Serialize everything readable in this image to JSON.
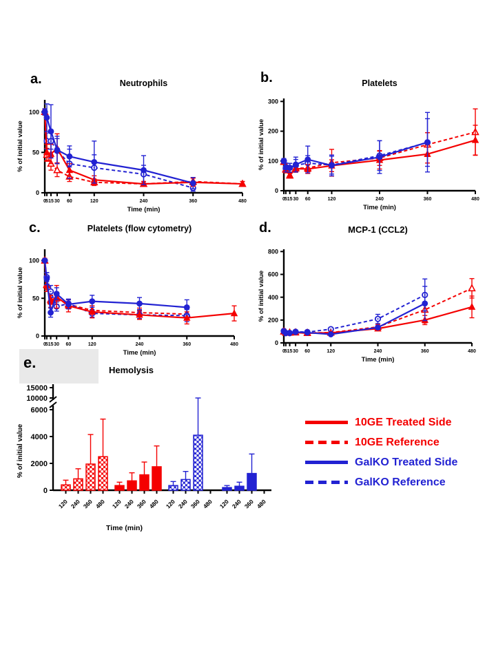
{
  "figure": {
    "background": "#ffffff",
    "colors": {
      "red": "#f40000",
      "blue": "#2222d2",
      "grey_box": "#e9e9e9",
      "axis": "#000000"
    },
    "legend": {
      "items": [
        {
          "label": "10GE Treated Side",
          "color": "red",
          "dash": false
        },
        {
          "label": "10GE Reference",
          "color": "red",
          "dash": true
        },
        {
          "label": "GalKO Treated Side",
          "color": "blue",
          "dash": false
        },
        {
          "label": "GalKO Reference",
          "color": "blue",
          "dash": true
        }
      ]
    }
  },
  "panels": {
    "a": {
      "label": "a."
    },
    "b": {
      "label": "b."
    },
    "c": {
      "label": "c."
    },
    "d": {
      "label": "d."
    },
    "e": {
      "label": "e."
    }
  },
  "chart_data": [
    {
      "id": "a",
      "type": "line",
      "title": "Neutrophils",
      "xlabel": "Time (min)",
      "ylabel": "% of initial value",
      "x": [
        0,
        5,
        15,
        30,
        60,
        120,
        240,
        360,
        480
      ],
      "xticklabels": [
        "0",
        "5",
        "15",
        "30",
        "60",
        "120",
        "240",
        "360",
        "480"
      ],
      "xlim": [
        0,
        480
      ],
      "ylim": [
        0,
        115
      ],
      "yticks": [
        0,
        50,
        100
      ],
      "grid": false,
      "series": [
        {
          "name": "10GE Treated Side",
          "color": "red",
          "dash": false,
          "marker": "triangle_filled",
          "values": [
            100,
            50,
            48,
            55,
            28,
            16,
            11,
            13,
            11
          ],
          "errors": [
            3,
            10,
            12,
            18,
            8,
            5,
            3,
            5,
            3
          ]
        },
        {
          "name": "10GE Reference",
          "color": "red",
          "dash": true,
          "marker": "triangle_open",
          "values": [
            100,
            47,
            36,
            28,
            20,
            13,
            11,
            14,
            11
          ],
          "errors": [
            0,
            8,
            8,
            8,
            6,
            4,
            3,
            5,
            3
          ]
        },
        {
          "name": "GalKO Treated Side",
          "color": "blue",
          "dash": false,
          "marker": "circle_filled",
          "values": [
            100,
            93,
            76,
            53,
            45,
            38,
            28,
            12,
            null
          ],
          "errors": [
            4,
            17,
            33,
            17,
            13,
            26,
            18,
            7,
            0
          ]
        },
        {
          "name": "GalKO Reference",
          "color": "blue",
          "dash": true,
          "marker": "circle_open",
          "values": [
            100,
            64,
            64,
            52,
            36,
            31,
            23,
            6,
            null
          ],
          "errors": [
            0,
            10,
            10,
            15,
            18,
            16,
            11,
            4,
            0
          ]
        }
      ]
    },
    {
      "id": "b",
      "type": "line",
      "title": "Platelets",
      "xlabel": "Time (min)",
      "ylabel": "% of initial value",
      "x": [
        0,
        5,
        15,
        30,
        60,
        120,
        240,
        360,
        480
      ],
      "xticklabels": [
        "0",
        "5",
        "15",
        "30",
        "60",
        "120",
        "240",
        "360",
        "480"
      ],
      "xlim": [
        0,
        480
      ],
      "ylim": [
        0,
        310
      ],
      "yticks": [
        0,
        100,
        200,
        300
      ],
      "grid": false,
      "series": [
        {
          "name": "10GE Treated Side",
          "color": "red",
          "dash": false,
          "marker": "triangle_filled",
          "values": [
            97,
            70,
            53,
            74,
            73,
            84,
            103,
            123,
            170
          ],
          "errors": [
            5,
            10,
            10,
            12,
            15,
            20,
            30,
            30,
            50
          ]
        },
        {
          "name": "10GE Reference",
          "color": "red",
          "dash": true,
          "marker": "triangle_open",
          "values": [
            97,
            72,
            51,
            76,
            76,
            94,
            110,
            155,
            197
          ],
          "errors": [
            5,
            10,
            8,
            12,
            12,
            45,
            25,
            40,
            78
          ]
        },
        {
          "name": "GalKO Treated Side",
          "color": "blue",
          "dash": false,
          "marker": "circle_filled",
          "values": [
            100,
            78,
            77,
            88,
            105,
            85,
            113,
            163,
            null
          ],
          "errors": [
            8,
            15,
            15,
            25,
            45,
            35,
            55,
            100,
            0
          ]
        },
        {
          "name": "GalKO Reference",
          "color": "blue",
          "dash": true,
          "marker": "circle_open",
          "values": [
            100,
            75,
            77,
            85,
            93,
            86,
            118,
            162,
            null
          ],
          "errors": [
            8,
            12,
            15,
            20,
            25,
            30,
            50,
            80,
            0
          ]
        }
      ]
    },
    {
      "id": "c",
      "type": "line",
      "title": "Platelets (flow cytometry)",
      "xlabel": "Time (min)",
      "ylabel": "% of initial value",
      "x": [
        0,
        5,
        15,
        30,
        60,
        120,
        240,
        360,
        480
      ],
      "xticklabels": [
        "0",
        "5",
        "15",
        "30",
        "60",
        "120",
        "240",
        "360",
        "480"
      ],
      "xlim": [
        0,
        480
      ],
      "ylim": [
        0,
        115
      ],
      "yticks": [
        0,
        50,
        100
      ],
      "grid": false,
      "series": [
        {
          "name": "10GE Treated Side",
          "color": "red",
          "dash": false,
          "marker": "triangle_filled",
          "values": [
            100,
            67,
            46,
            52,
            40,
            32,
            28,
            24,
            30
          ],
          "errors": [
            3,
            8,
            8,
            15,
            8,
            8,
            6,
            8,
            10
          ]
        },
        {
          "name": "10GE Reference",
          "color": "red",
          "dash": true,
          "marker": "triangle_open",
          "values": [
            100,
            68,
            48,
            50,
            42,
            34,
            31,
            29,
            null
          ],
          "errors": [
            0,
            6,
            6,
            8,
            6,
            6,
            6,
            8,
            0
          ]
        },
        {
          "name": "GalKO Treated Side",
          "color": "blue",
          "dash": false,
          "marker": "circle_filled",
          "values": [
            100,
            76,
            31,
            56,
            42,
            46,
            43,
            38,
            null
          ],
          "errors": [
            0,
            8,
            6,
            8,
            6,
            8,
            8,
            10,
            0
          ]
        },
        {
          "name": "GalKO Reference",
          "color": "blue",
          "dash": true,
          "marker": "circle_open",
          "values": [
            100,
            78,
            59,
            39,
            43,
            30,
            28,
            27,
            null
          ],
          "errors": [
            0,
            6,
            8,
            6,
            6,
            5,
            5,
            8,
            0
          ]
        }
      ]
    },
    {
      "id": "d",
      "type": "line",
      "title": "MCP-1 (CCL2)",
      "xlabel": "Time (min)",
      "ylabel": "% of initial value",
      "x": [
        0,
        5,
        15,
        30,
        60,
        120,
        240,
        360,
        480
      ],
      "xticklabels": [
        "0",
        "5",
        "15",
        "30",
        "60",
        "120",
        "240",
        "360",
        "480"
      ],
      "xlim": [
        0,
        480
      ],
      "ylim": [
        0,
        820
      ],
      "yticks": [
        0,
        200,
        400,
        600,
        800
      ],
      "grid": false,
      "series": [
        {
          "name": "10GE Treated Side",
          "color": "red",
          "dash": false,
          "marker": "triangle_filled",
          "values": [
            100,
            90,
            88,
            90,
            85,
            88,
            125,
            200,
            315
          ],
          "errors": [
            8,
            8,
            8,
            8,
            8,
            8,
            15,
            40,
            95
          ]
        },
        {
          "name": "10GE Reference",
          "color": "red",
          "dash": true,
          "marker": "triangle_open",
          "values": [
            100,
            90,
            90,
            92,
            88,
            90,
            140,
            290,
            478
          ],
          "errors": [
            8,
            8,
            8,
            8,
            8,
            8,
            20,
            115,
            85
          ]
        },
        {
          "name": "GalKO Treated Side",
          "color": "blue",
          "dash": false,
          "marker": "circle_filled",
          "values": [
            100,
            88,
            88,
            95,
            90,
            75,
            135,
            345,
            null
          ],
          "errors": [
            10,
            8,
            8,
            8,
            8,
            10,
            15,
            150,
            0
          ]
        },
        {
          "name": "GalKO Reference",
          "color": "blue",
          "dash": true,
          "marker": "circle_open",
          "values": [
            105,
            85,
            85,
            97,
            95,
            120,
            210,
            420,
            null
          ],
          "errors": [
            10,
            8,
            8,
            8,
            8,
            15,
            40,
            140,
            0
          ]
        }
      ]
    },
    {
      "id": "e",
      "type": "bar",
      "title": "Hemolysis",
      "xlabel": "Time (min)",
      "ylabel": "% of initial value",
      "categories": [
        "120",
        "240",
        "360",
        "480"
      ],
      "yticks": [
        0,
        2000,
        4000,
        6000,
        10000,
        15000
      ],
      "ylim": [
        0,
        15000
      ],
      "axis_break": {
        "between": [
          6000,
          10000
        ]
      },
      "grid": false,
      "groups": [
        {
          "name": "10GE Treated Side",
          "color": "red",
          "pattern": "checkered",
          "values": [
            400,
            850,
            1950,
            2500
          ],
          "err_top": [
            750,
            1600,
            4150,
            5300
          ]
        },
        {
          "name": "10GE Reference",
          "color": "red",
          "pattern": "solid",
          "values": [
            350,
            700,
            1150,
            1750
          ],
          "err_top": [
            600,
            1300,
            2100,
            3300
          ]
        },
        {
          "name": "GalKO Treated Side",
          "color": "blue",
          "pattern": "checkered",
          "values": [
            350,
            800,
            4100,
            0
          ],
          "err_top": [
            650,
            1400,
            10000,
            0
          ]
        },
        {
          "name": "GalKO Reference",
          "color": "blue",
          "pattern": "solid",
          "values": [
            200,
            300,
            1250,
            0
          ],
          "err_top": [
            350,
            600,
            2700,
            0
          ]
        }
      ]
    }
  ]
}
